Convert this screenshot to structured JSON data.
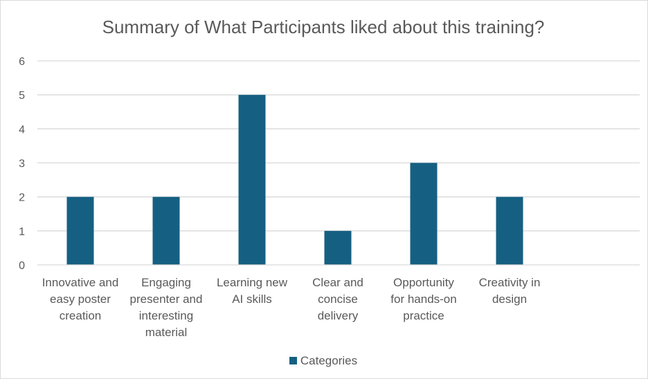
{
  "chart_data": {
    "type": "bar",
    "title": "Summary of What Participants liked about this training?",
    "categories": [
      [
        "Innovative and",
        "easy poster",
        "creation"
      ],
      [
        "Engaging",
        "presenter and",
        "interesting",
        "material"
      ],
      [
        "Learning new",
        "AI skills"
      ],
      [
        "Clear and",
        "concise",
        "delivery"
      ],
      [
        "Opportunity",
        "for hands-on",
        "practice"
      ],
      [
        "Creativity in",
        "design"
      ]
    ],
    "series": [
      {
        "name": "Categories",
        "values": [
          2,
          2,
          5,
          1,
          3,
          2
        ]
      }
    ],
    "ylim": [
      0,
      6
    ],
    "yticks": [
      "0",
      "1",
      "2",
      "3",
      "4",
      "5",
      "6"
    ],
    "grid": true,
    "legend_position": "bottom",
    "bar_color": "#156082",
    "gridline_color": "#d9d9d9"
  }
}
